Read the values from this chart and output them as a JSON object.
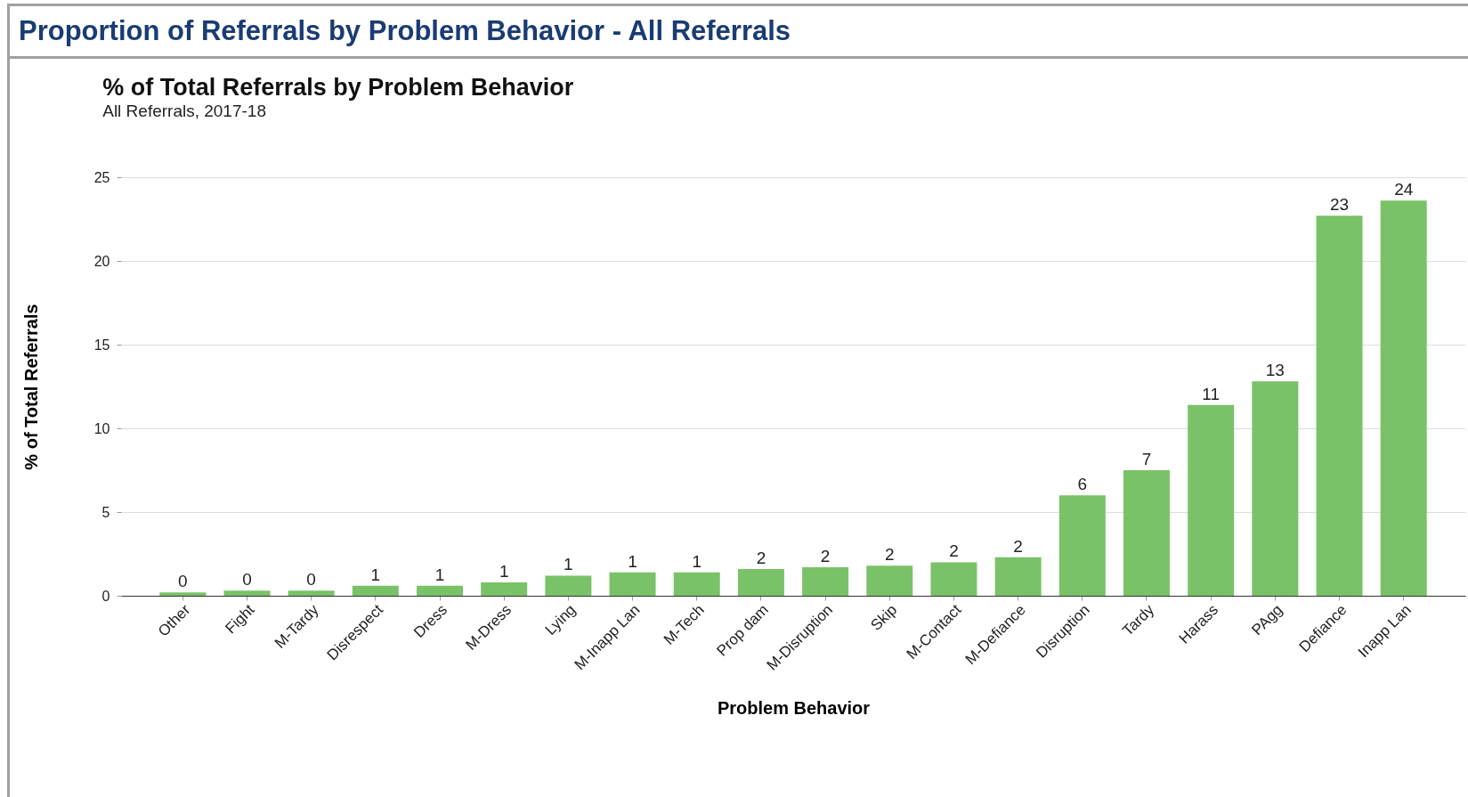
{
  "chart_data": {
    "type": "bar",
    "title": "% of Total Referrals by Problem Behavior",
    "subtitle": "All Referrals, 2017-18",
    "annotations": [
      "Proportion of Referrals by Problem Behavior - All Referrals"
    ],
    "xlabel": "Problem Behavior",
    "ylabel": "% of Total Referrals",
    "categories": [
      "Other",
      "Fight",
      "M-Tardy",
      "Disrespect",
      "Dress",
      "M-Dress",
      "Lying",
      "M-Inapp Lan",
      "M-Tech",
      "Prop dam",
      "M-Disruption",
      "Skip",
      "M-Contact",
      "M-Defiance",
      "Disruption",
      "Tardy",
      "Harass",
      "PAgg",
      "Defiance",
      "Inapp Lan"
    ],
    "values": [
      0.2,
      0.3,
      0.3,
      0.6,
      0.6,
      0.8,
      1.2,
      1.4,
      1.4,
      1.6,
      1.7,
      1.8,
      2.0,
      2.3,
      6.0,
      7.5,
      11.4,
      12.8,
      22.7,
      23.6
    ],
    "value_labels": [
      "0",
      "0",
      "0",
      "1",
      "1",
      "1",
      "1",
      "1",
      "1",
      "2",
      "2",
      "2",
      "2",
      "2",
      "6",
      "7",
      "11",
      "13",
      "23",
      "24"
    ],
    "color": "#79c267",
    "ylim": [
      0,
      25
    ],
    "yticks": [
      0,
      5,
      10,
      15,
      20,
      25
    ],
    "grid": "y"
  }
}
